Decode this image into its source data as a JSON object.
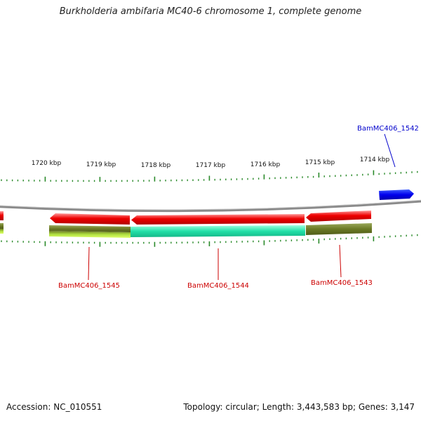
{
  "title": "Burkholderia ambifaria MC40-6 chromosome 1, complete genome",
  "accession_text": "Accession: NC_010551",
  "summary_text": "Topology: circular; Length: 3,443,583 bp; Genes: 3,147",
  "colors": {
    "backbone": "#888888",
    "tick": "#2a8a2a",
    "forward_gene": "#0000ee",
    "reverse_gene": "#ee0000",
    "label_blue": "#0000cc",
    "label_red": "#cc0000",
    "cds_teal": "#22e0a8",
    "cds_olive": "#6b7a25",
    "cds_lime": "#b0e040"
  },
  "scale_labels": [
    "1720 kbp",
    "1719 kbp",
    "1718 kbp",
    "1717 kbp",
    "1716 kbp",
    "1715 kbp",
    "1714 kbp"
  ],
  "genes": [
    {
      "label": "BamMC406_1542",
      "strand": "forward",
      "label_color": "blue"
    },
    {
      "label": "BamMC406_1543",
      "strand": "reverse",
      "label_color": "red"
    },
    {
      "label": "BamMC406_1544",
      "strand": "reverse",
      "label_color": "red"
    },
    {
      "label": "BamMC406_1545",
      "strand": "reverse",
      "label_color": "red"
    }
  ]
}
